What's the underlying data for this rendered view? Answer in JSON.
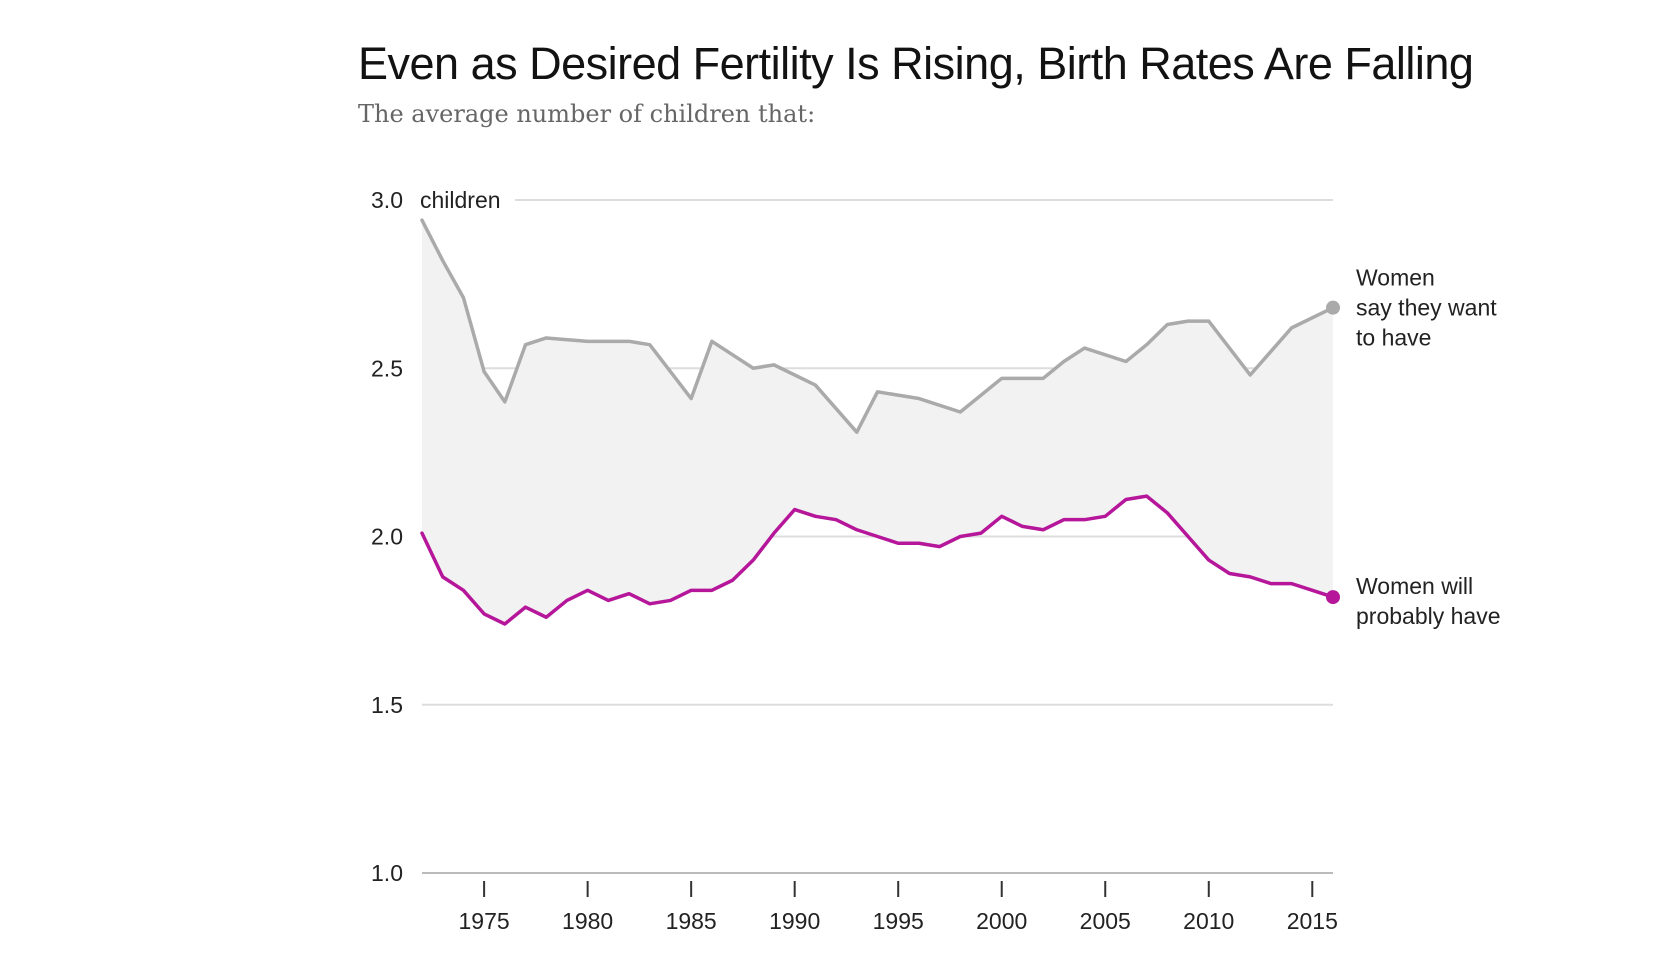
{
  "chart_data": {
    "type": "line",
    "title": "Even as Desired Fertility Is Rising, Birth Rates Are Falling",
    "subtitle": "The average number of children that:",
    "y_unit_label": "children",
    "ylim": [
      1.0,
      3.0
    ],
    "yticks": [
      1.0,
      1.5,
      2.0,
      2.5,
      3.0
    ],
    "ytick_labels": [
      "1.0",
      "1.5",
      "2.0",
      "2.5",
      "3.0"
    ],
    "xlim": [
      1972,
      2016
    ],
    "xticks": [
      1975,
      1980,
      1985,
      1990,
      1995,
      2000,
      2005,
      2010,
      2015
    ],
    "xtick_labels": [
      "1975",
      "1980",
      "1985",
      "1990",
      "1995",
      "2000",
      "2005",
      "2010",
      "2015"
    ],
    "grid": true,
    "gap_shading": true,
    "x": [
      1972,
      1973,
      1974,
      1975,
      1976,
      1977,
      1978,
      1980,
      1982,
      1983,
      1985,
      1986,
      1988,
      1989,
      1991,
      1993,
      1994,
      1996,
      1998,
      2000,
      2002,
      2003,
      2004,
      2006,
      2007,
      2008,
      2009,
      2010,
      2012,
      2014,
      2016
    ],
    "series": [
      {
        "key": "want",
        "label_lines": [
          "Women",
          "say they want",
          "to have"
        ],
        "color": "#aaaaaa",
        "values": [
          2.94,
          2.82,
          2.71,
          2.49,
          2.4,
          2.57,
          2.59,
          2.58,
          2.58,
          2.57,
          2.41,
          2.58,
          2.5,
          2.51,
          2.45,
          2.31,
          2.43,
          2.41,
          2.37,
          2.47,
          2.47,
          2.52,
          2.56,
          2.52,
          2.57,
          2.63,
          2.64,
          2.64,
          2.48,
          2.62,
          2.68
        ]
      },
      {
        "key": "will_have",
        "label_lines": [
          "Women will",
          "probably have"
        ],
        "color": "#b5169a",
        "x": [
          1972,
          1973,
          1974,
          1975,
          1976,
          1977,
          1978,
          1979,
          1980,
          1981,
          1982,
          1983,
          1984,
          1985,
          1986,
          1987,
          1988,
          1989,
          1990,
          1991,
          1992,
          1993,
          1994,
          1995,
          1996,
          1997,
          1998,
          1999,
          2000,
          2001,
          2002,
          2003,
          2004,
          2005,
          2006,
          2007,
          2008,
          2009,
          2010,
          2011,
          2012,
          2013,
          2014,
          2015,
          2016
        ],
        "values": [
          2.01,
          1.88,
          1.84,
          1.77,
          1.74,
          1.79,
          1.76,
          1.81,
          1.84,
          1.81,
          1.83,
          1.8,
          1.81,
          1.84,
          1.84,
          1.87,
          1.93,
          2.01,
          2.08,
          2.06,
          2.05,
          2.02,
          2.0,
          1.98,
          1.98,
          1.97,
          2.0,
          2.01,
          2.06,
          2.03,
          2.02,
          2.05,
          2.05,
          2.06,
          2.11,
          2.12,
          2.07,
          2.0,
          1.93,
          1.89,
          1.88,
          1.86,
          1.86,
          1.84,
          1.82
        ]
      }
    ]
  }
}
